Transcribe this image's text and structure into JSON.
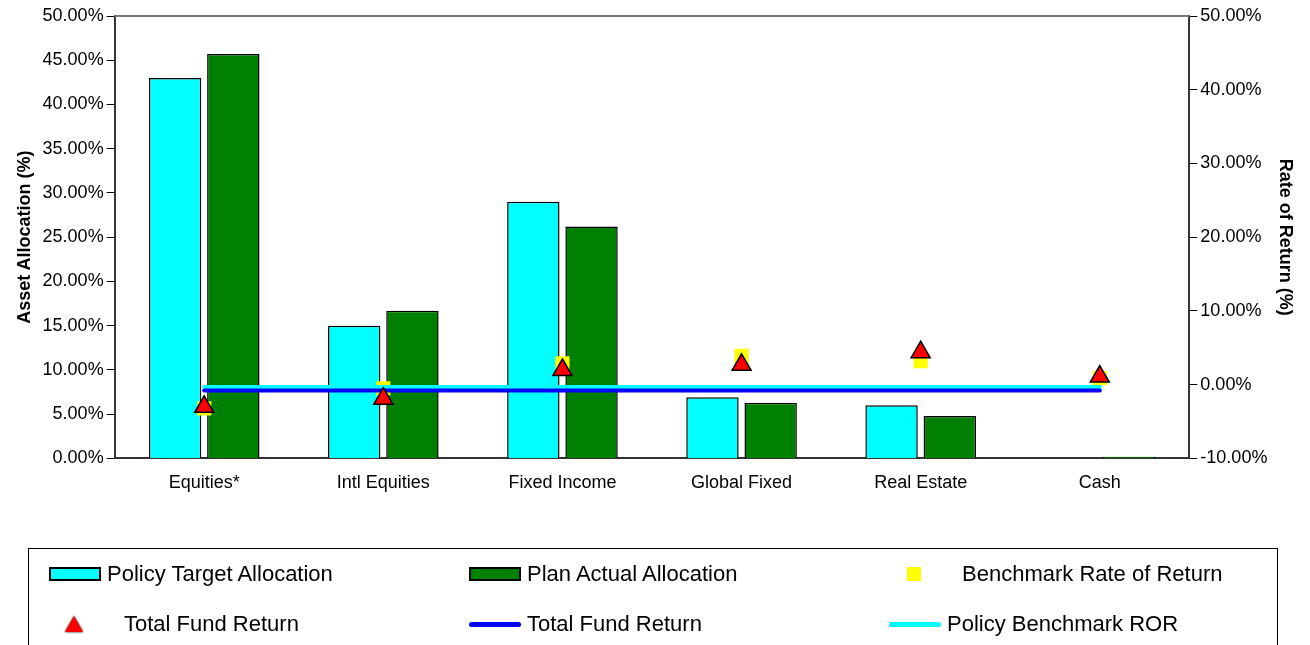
{
  "chart_data": {
    "type": "bar",
    "categories": [
      "Equities*",
      "Intl Equities",
      "Fixed Income",
      "Global Fixed",
      "Real Estate",
      "Cash"
    ],
    "ylabel": "Asset Allocation (%)",
    "y2label": "Rate of Return (%)",
    "ylim": [
      0,
      50
    ],
    "yticks": [
      {
        "value": 0,
        "label": "0.00%"
      },
      {
        "value": 5,
        "label": "5.00%"
      },
      {
        "value": 10,
        "label": "10.00%"
      },
      {
        "value": 15,
        "label": "15.00%"
      },
      {
        "value": 20,
        "label": "20.00%"
      },
      {
        "value": 25,
        "label": "25.00%"
      },
      {
        "value": 30,
        "label": "30.00%"
      },
      {
        "value": 35,
        "label": "35.00%"
      },
      {
        "value": 40,
        "label": "40.00%"
      },
      {
        "value": 45,
        "label": "45.00%"
      },
      {
        "value": 50,
        "label": "50.00%"
      }
    ],
    "y2lim": [
      -10,
      50
    ],
    "y2ticks": [
      {
        "value": -10,
        "label": "-10.00%"
      },
      {
        "value": 0,
        "label": "0.00%"
      },
      {
        "value": 10,
        "label": "10.00%"
      },
      {
        "value": 20,
        "label": "20.00%"
      },
      {
        "value": 30,
        "label": "30.00%"
      },
      {
        "value": 40,
        "label": "40.00%"
      },
      {
        "value": 50,
        "label": "50.00%"
      }
    ],
    "grid": false,
    "legend": "bottom",
    "series": [
      {
        "name": "Policy Target Allocation",
        "color": "#00ffff",
        "values": [
          43.0,
          15.0,
          29.0,
          6.9,
          6.0,
          null
        ]
      },
      {
        "name": "Plan Actual Allocation",
        "color": "#008000",
        "values": [
          45.7,
          16.7,
          26.2,
          6.3,
          4.8,
          0.2
        ]
      },
      {
        "name": "Benchmark Rate of Return",
        "type": "scatter",
        "axis": "y2",
        "marker": "square",
        "color": "#ffff00",
        "values": [
          -3.2,
          -0.5,
          2.9,
          3.9,
          3.2,
          0.9
        ]
      },
      {
        "name": "Total Fund Return",
        "type": "scatter",
        "axis": "y2",
        "marker": "triangle",
        "color": "#ff0000",
        "values": [
          -3.0,
          -1.9,
          2.0,
          2.7,
          4.4,
          1.1
        ]
      },
      {
        "name": "Total Fund Return",
        "type": "line",
        "axis": "y2",
        "marker": "none",
        "color": "#0000ff",
        "values": [
          -0.8,
          -0.8,
          -0.8,
          -0.8,
          -0.8,
          -0.8
        ]
      },
      {
        "name": "Policy Benchmark ROR",
        "type": "line",
        "axis": "y2",
        "marker": "none",
        "color": "#00ffff",
        "values": [
          -0.3,
          -0.3,
          -0.3,
          -0.3,
          -0.3,
          -0.3
        ]
      }
    ]
  }
}
